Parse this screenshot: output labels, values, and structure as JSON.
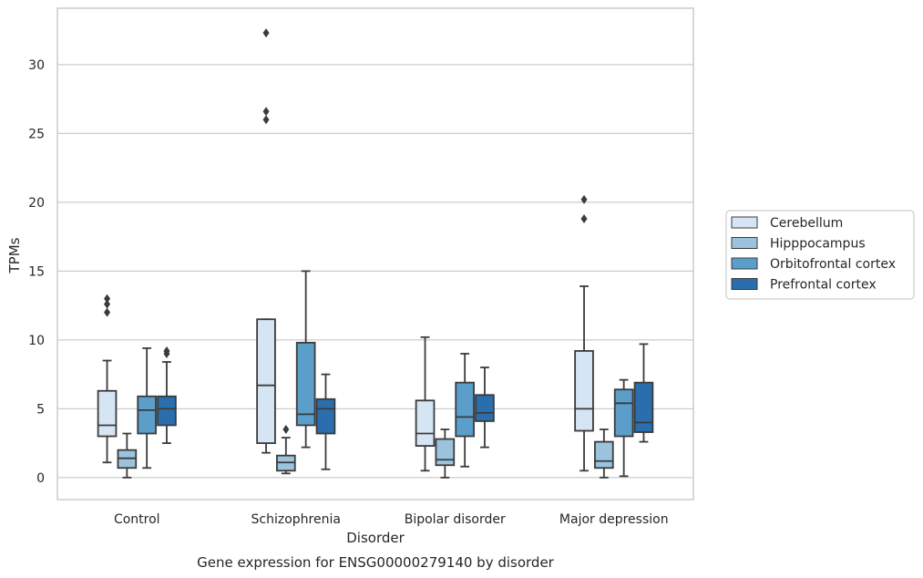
{
  "chart_data": {
    "type": "box",
    "caption": "Gene expression for ENSG00000279140 by disorder",
    "xlabel": "Disorder",
    "ylabel": "TPMs",
    "ylim": [
      -1.6,
      34.1
    ],
    "yticks": [
      0,
      5,
      10,
      15,
      20,
      25,
      30
    ],
    "grid": "horizontal",
    "legend_position": "right",
    "categories": [
      "Control",
      "Schizophrenia",
      "Bipolar disorder",
      "Major depression"
    ],
    "series": [
      {
        "name": "Cerebellum",
        "color": "#d6e5f4",
        "boxes": [
          {
            "whislo": 1.1,
            "q1": 3.0,
            "med": 3.8,
            "q3": 6.3,
            "whishi": 8.5,
            "fliers": [
              12.0,
              12.6,
              13.0
            ]
          },
          {
            "whislo": 1.8,
            "q1": 2.5,
            "med": 6.7,
            "q3": 11.5,
            "whishi": 11.5,
            "fliers": [
              26.0,
              26.6,
              32.3
            ]
          },
          {
            "whislo": 0.5,
            "q1": 2.3,
            "med": 3.2,
            "q3": 5.6,
            "whishi": 10.2,
            "fliers": []
          },
          {
            "whislo": 0.5,
            "q1": 3.4,
            "med": 5.0,
            "q3": 9.2,
            "whishi": 13.9,
            "fliers": [
              18.8,
              20.2
            ]
          }
        ]
      },
      {
        "name": "Hipppocampus",
        "color": "#9bc3dd",
        "boxes": [
          {
            "whislo": 0.0,
            "q1": 0.7,
            "med": 1.4,
            "q3": 2.0,
            "whishi": 3.2,
            "fliers": []
          },
          {
            "whislo": 0.3,
            "q1": 0.5,
            "med": 1.1,
            "q3": 1.6,
            "whishi": 2.9,
            "fliers": [
              3.5
            ]
          },
          {
            "whislo": 0.0,
            "q1": 0.9,
            "med": 1.3,
            "q3": 2.8,
            "whishi": 3.5,
            "fliers": []
          },
          {
            "whislo": 0.0,
            "q1": 0.7,
            "med": 1.2,
            "q3": 2.6,
            "whishi": 3.5,
            "fliers": []
          }
        ]
      },
      {
        "name": "Orbitofrontal cortex",
        "color": "#5a9ec9",
        "boxes": [
          {
            "whislo": 0.7,
            "q1": 3.2,
            "med": 4.9,
            "q3": 5.9,
            "whishi": 9.4,
            "fliers": []
          },
          {
            "whislo": 2.2,
            "q1": 3.8,
            "med": 4.6,
            "q3": 9.8,
            "whishi": 15.0,
            "fliers": []
          },
          {
            "whislo": 0.8,
            "q1": 3.0,
            "med": 4.4,
            "q3": 6.9,
            "whishi": 9.0,
            "fliers": []
          },
          {
            "whislo": 0.1,
            "q1": 3.0,
            "med": 5.4,
            "q3": 6.4,
            "whishi": 7.1,
            "fliers": []
          }
        ]
      },
      {
        "name": "Prefrontal cortex",
        "color": "#2b6ead",
        "boxes": [
          {
            "whislo": 2.5,
            "q1": 3.8,
            "med": 5.0,
            "q3": 5.9,
            "whishi": 8.4,
            "fliers": [
              9.0,
              9.2
            ]
          },
          {
            "whislo": 0.6,
            "q1": 3.2,
            "med": 5.0,
            "q3": 5.7,
            "whishi": 7.5,
            "fliers": []
          },
          {
            "whislo": 2.2,
            "q1": 4.1,
            "med": 4.7,
            "q3": 6.0,
            "whishi": 8.0,
            "fliers": []
          },
          {
            "whislo": 2.6,
            "q1": 3.3,
            "med": 4.0,
            "q3": 6.9,
            "whishi": 9.7,
            "fliers": []
          }
        ]
      }
    ]
  }
}
